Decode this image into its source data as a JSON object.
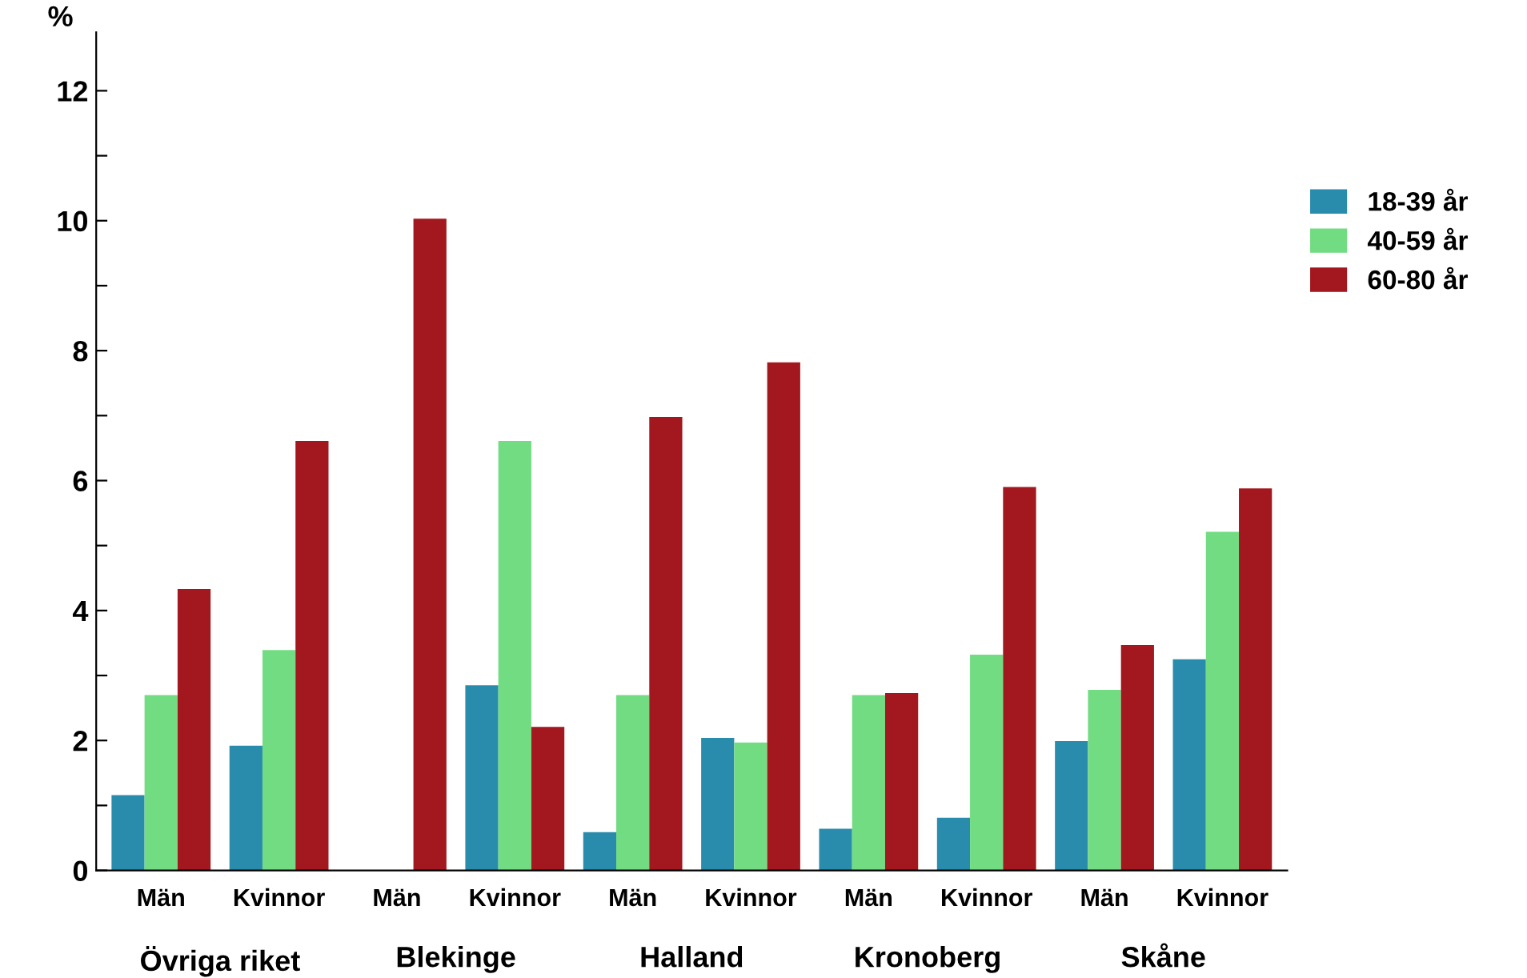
{
  "chart_data": {
    "type": "bar",
    "ylabel": "%",
    "categories": [
      "Män",
      "Kvinnor",
      "Män",
      "Kvinnor",
      "Män",
      "Kvinnor",
      "Män",
      "Kvinnor",
      "Män",
      "Kvinnor"
    ],
    "annotations": [
      "Övriga riket",
      "Blekinge",
      "Halland",
      "Kronoberg",
      "Skåne"
    ],
    "series": [
      {
        "name": "18-39 år",
        "color": "#2a8cad",
        "values": [
          1.16,
          1.92,
          0,
          2.85,
          0.59,
          2.04,
          0.64,
          0.81,
          1.99,
          3.25
        ]
      },
      {
        "name": "40-59 år",
        "color": "#72dc82",
        "values": [
          2.7,
          3.39,
          0,
          6.61,
          2.7,
          1.97,
          2.7,
          3.32,
          2.78,
          5.21
        ]
      },
      {
        "name": "60-80 år",
        "color": "#a3171e",
        "values": [
          4.33,
          6.61,
          10.03,
          2.21,
          6.98,
          7.82,
          2.73,
          5.9,
          3.47,
          5.88
        ]
      }
    ],
    "ylim": [
      0,
      12.9
    ],
    "yticks": [
      0,
      {
        "value": 1,
        "label": null
      },
      2,
      {
        "value": 3,
        "label": null
      },
      4,
      {
        "value": 5,
        "label": null
      },
      6,
      {
        "value": 7,
        "label": null
      },
      8,
      {
        "value": 9,
        "label": null
      },
      10,
      {
        "value": 11,
        "label": null
      },
      12
    ],
    "grid": false,
    "legend": "right"
  }
}
